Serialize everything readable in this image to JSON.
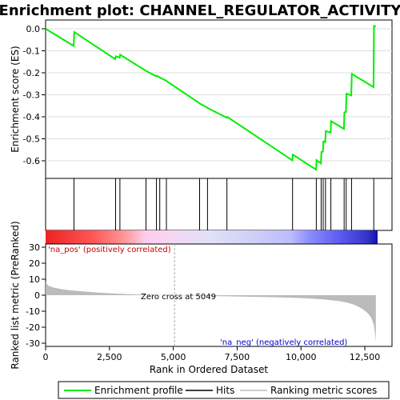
{
  "title": "Enrichment plot: CHANNEL_REGULATOR_ACTIVITY",
  "colors": {
    "es_line": "#00ee00",
    "hit": "#000000",
    "metric_fill": "#bbbbbb",
    "pos_label": "#cc0000",
    "neg_label": "#0000cc",
    "zero_line": "#aaaaaa"
  },
  "chart_data": [
    {
      "type": "line",
      "name": "enrichment-profile",
      "ylabel": "Enrichment score (ES)",
      "xlim": [
        0,
        13000
      ],
      "ylim": [
        -0.68,
        0.04
      ],
      "yticks": [
        0.0,
        -0.1,
        -0.2,
        -0.3,
        -0.4,
        -0.5,
        -0.6
      ],
      "ytick_labels": [
        "0.0",
        "-0.1",
        "-0.2",
        "-0.3",
        "-0.4",
        "-0.5",
        "-0.6"
      ],
      "grid": true,
      "x": [
        0,
        1100,
        1120,
        2730,
        2750,
        2900,
        2920,
        3920,
        3940,
        4330,
        4350,
        4460,
        4480,
        4720,
        4740,
        6020,
        6040,
        6330,
        6350,
        7090,
        7110,
        9660,
        9680,
        10590,
        10610,
        10780,
        10800,
        10860,
        10880,
        10950,
        10970,
        11160,
        11180,
        11680,
        11700,
        11760,
        11780,
        11970,
        11990,
        12840,
        12860,
        12930
      ],
      "y": [
        0.0,
        -0.078,
        -0.015,
        -0.138,
        -0.125,
        -0.131,
        -0.118,
        -0.19,
        -0.192,
        -0.216,
        -0.214,
        -0.22,
        -0.222,
        -0.236,
        -0.238,
        -0.338,
        -0.34,
        -0.358,
        -0.36,
        -0.404,
        -0.4,
        -0.598,
        -0.572,
        -0.64,
        -0.597,
        -0.612,
        -0.56,
        -0.558,
        -0.512,
        -0.515,
        -0.465,
        -0.472,
        -0.42,
        -0.455,
        -0.38,
        -0.378,
        -0.295,
        -0.303,
        -0.205,
        -0.265,
        0.013,
        0.01
      ]
    },
    {
      "type": "hits",
      "name": "hits",
      "x": [
        1110,
        2740,
        2910,
        3930,
        4340,
        4470,
        4730,
        6030,
        6340,
        7100,
        9670,
        10600,
        10790,
        10870,
        10960,
        11170,
        11690,
        11770,
        11980,
        12850
      ]
    },
    {
      "type": "area",
      "name": "ranking-metric",
      "xlabel": "Rank in Ordered Dataset",
      "ylabel": "Ranked list metric (PreRanked)",
      "xlim": [
        0,
        13000
      ],
      "ylim": [
        -32,
        32
      ],
      "xticks": [
        0,
        2500,
        5000,
        7500,
        10000,
        12500
      ],
      "xtick_labels": [
        "0",
        "2,500",
        "5,000",
        "7,500",
        "10,000",
        "12,500"
      ],
      "yticks": [
        30,
        20,
        10,
        0,
        -10,
        -20,
        -30
      ],
      "ytick_labels": [
        "30",
        "20",
        "10",
        "0",
        "-10",
        "-20",
        "-30"
      ],
      "x": [
        0,
        100,
        300,
        600,
        1000,
        1500,
        2000,
        2500,
        3000,
        3500,
        4000,
        4500,
        5049,
        5500,
        6500,
        7500,
        8500,
        9500,
        10000,
        10500,
        11000,
        11500,
        11800,
        12000,
        12200,
        12400,
        12600,
        12750,
        12850,
        12900,
        12930
      ],
      "y": [
        8.5,
        6.0,
        4.8,
        3.8,
        3.0,
        2.3,
        1.7,
        1.2,
        0.8,
        0.5,
        0.3,
        0.15,
        0.0,
        -0.2,
        -0.5,
        -0.8,
        -1.1,
        -1.5,
        -1.8,
        -2.2,
        -2.8,
        -3.7,
        -4.6,
        -5.5,
        -6.8,
        -8.5,
        -11.0,
        -14.0,
        -18.5,
        -24.0,
        -29.0
      ],
      "zero_cross_label": "Zero cross at 5049",
      "zero_cross_x": 5049,
      "pos_label": "'na_pos' (positively correlated)",
      "neg_label": "'na_neg' (negatively correlated)"
    }
  ],
  "legend": {
    "items": [
      {
        "label": "Enrichment profile",
        "color": "#00ee00"
      },
      {
        "label": "Hits",
        "color": "#000000"
      },
      {
        "label": "Ranking metric scores",
        "color": "#bbbbbb"
      }
    ]
  }
}
